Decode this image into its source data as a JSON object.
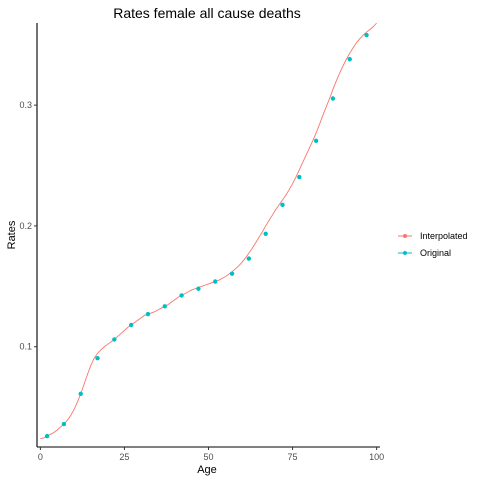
{
  "chart_data": {
    "type": "line",
    "title": "Rates female all cause deaths",
    "xlabel": "Age",
    "ylabel": "Rates",
    "xlim": [
      -1,
      101
    ],
    "ylim": [
      0.017,
      0.368
    ],
    "x_ticks": [
      0,
      25,
      50,
      75,
      100
    ],
    "y_ticks": [
      0.1,
      0.2,
      0.3
    ],
    "x_tick_labels": [
      "0",
      "25",
      "50",
      "75",
      "100"
    ],
    "y_tick_labels": [
      "0.1",
      "0.2",
      "0.3"
    ],
    "grid": false,
    "legend_position": "right",
    "series": [
      {
        "name": "Interpolated",
        "color": "#F8766D",
        "marker": "line",
        "x": [
          0,
          1,
          2,
          3,
          4,
          5,
          6,
          7,
          8,
          9,
          10,
          11,
          12,
          13,
          14,
          15,
          16,
          17,
          18,
          19,
          20,
          21,
          22,
          23,
          24,
          25,
          26,
          27,
          28,
          29,
          30,
          31,
          32,
          33,
          34,
          35,
          36,
          37,
          38,
          39,
          40,
          41,
          42,
          43,
          44,
          45,
          46,
          47,
          48,
          49,
          50,
          51,
          52,
          53,
          54,
          55,
          56,
          57,
          58,
          59,
          60,
          61,
          62,
          63,
          64,
          65,
          66,
          67,
          68,
          69,
          70,
          71,
          72,
          73,
          74,
          75,
          76,
          77,
          78,
          79,
          80,
          81,
          82,
          83,
          84,
          85,
          86,
          87,
          88,
          89,
          90,
          91,
          92,
          93,
          94,
          95,
          96,
          97,
          98,
          99,
          100
        ],
        "values": [
          0.024,
          0.0245,
          0.026,
          0.0275,
          0.029,
          0.031,
          0.0335,
          0.036,
          0.039,
          0.043,
          0.048,
          0.054,
          0.061,
          0.069,
          0.077,
          0.0845,
          0.0905,
          0.0945,
          0.0975,
          0.1,
          0.102,
          0.104,
          0.106,
          0.1085,
          0.111,
          0.1135,
          0.116,
          0.118,
          0.12,
          0.122,
          0.124,
          0.126,
          0.127,
          0.128,
          0.129,
          0.1305,
          0.132,
          0.1335,
          0.135,
          0.137,
          0.139,
          0.141,
          0.1425,
          0.144,
          0.1455,
          0.147,
          0.148,
          0.149,
          0.15,
          0.151,
          0.152,
          0.153,
          0.154,
          0.155,
          0.1565,
          0.158,
          0.16,
          0.162,
          0.1645,
          0.167,
          0.17,
          0.1735,
          0.1775,
          0.1815,
          0.186,
          0.1905,
          0.195,
          0.2,
          0.2045,
          0.209,
          0.2135,
          0.2175,
          0.2215,
          0.2255,
          0.23,
          0.235,
          0.2405,
          0.2465,
          0.2525,
          0.2585,
          0.2645,
          0.2705,
          0.277,
          0.284,
          0.2915,
          0.2985,
          0.3055,
          0.313,
          0.32,
          0.3265,
          0.3325,
          0.338,
          0.343,
          0.3475,
          0.3515,
          0.355,
          0.358,
          0.3605,
          0.3625,
          0.365,
          0.368
        ]
      },
      {
        "name": "Original",
        "color": "#00BFC4",
        "marker": "point",
        "x": [
          2,
          7,
          12,
          17,
          22,
          27,
          32,
          37,
          42,
          47,
          52,
          57,
          62,
          67,
          72,
          77,
          82,
          87,
          92,
          97
        ],
        "values": [
          0.026,
          0.036,
          0.061,
          0.0905,
          0.106,
          0.118,
          0.127,
          0.1335,
          0.1425,
          0.148,
          0.154,
          0.1605,
          0.173,
          0.1935,
          0.2175,
          0.2405,
          0.2705,
          0.3055,
          0.338,
          0.358
        ]
      }
    ]
  }
}
